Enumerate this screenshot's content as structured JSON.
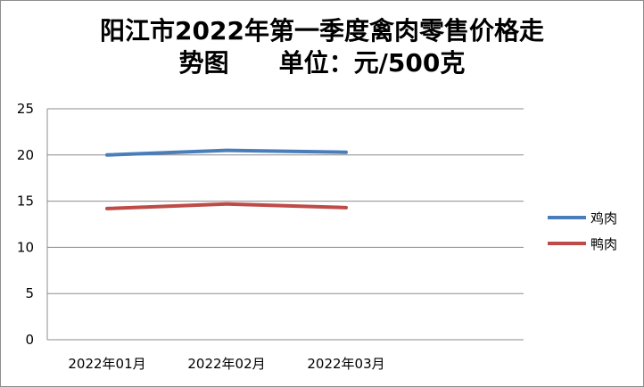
{
  "chart_data": {
    "type": "line",
    "title_line1": "阳江市2022年第一季度禽肉零售价格走",
    "title_line2": "势图　　单位：元/500克",
    "categories": [
      "2022年01月",
      "2022年02月",
      "2022年03月"
    ],
    "series": [
      {
        "name": "鸡肉",
        "color": "#4a7ebb",
        "values": [
          20.0,
          20.5,
          20.3
        ]
      },
      {
        "name": "鸭肉",
        "color": "#be4b48",
        "values": [
          14.2,
          14.7,
          14.3
        ]
      }
    ],
    "ylim": [
      0,
      25
    ],
    "yticks": [
      0,
      5,
      10,
      15,
      20,
      25
    ],
    "grid": true,
    "legend_position": "right"
  }
}
